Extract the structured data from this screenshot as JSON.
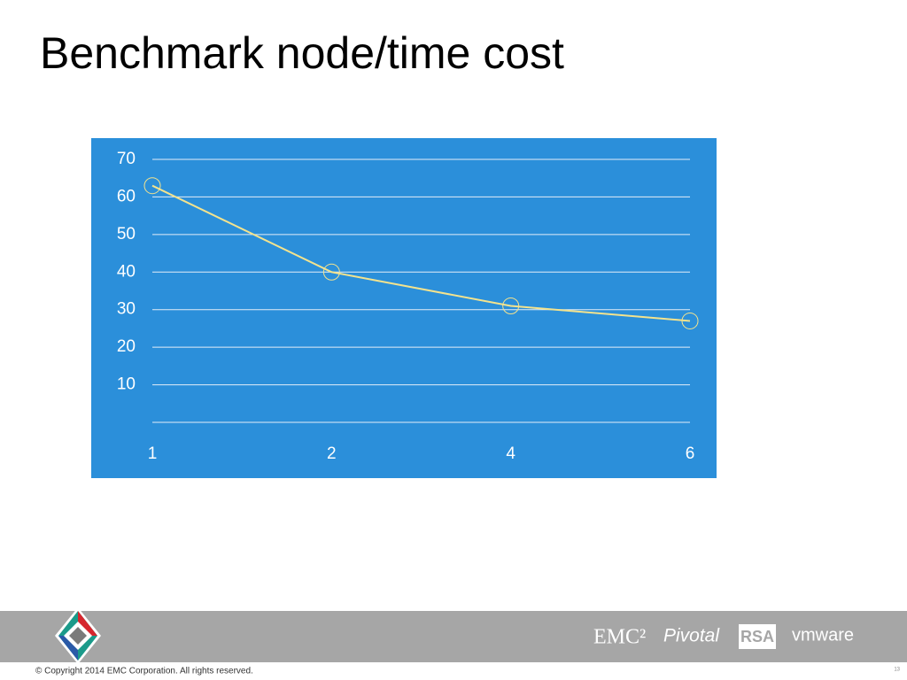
{
  "chart_data": {
    "type": "line",
    "title": "Benchmark node/time cost",
    "categories": [
      "1",
      "2",
      "4",
      "6"
    ],
    "values": [
      63,
      40,
      31,
      27
    ],
    "color": "#f3e38e",
    "background": "#2b8fda",
    "ylim": [
      0,
      70
    ],
    "yticks": [
      10,
      20,
      30,
      40,
      50,
      60,
      70
    ],
    "grid": true,
    "markers": true
  },
  "footer": {
    "copyright": "© Copyright 2014 EMC Corporation. All rights reserved.",
    "logos": [
      "EMC²",
      "Pivotal",
      "RSA",
      "vmware"
    ],
    "page_number": "13"
  }
}
